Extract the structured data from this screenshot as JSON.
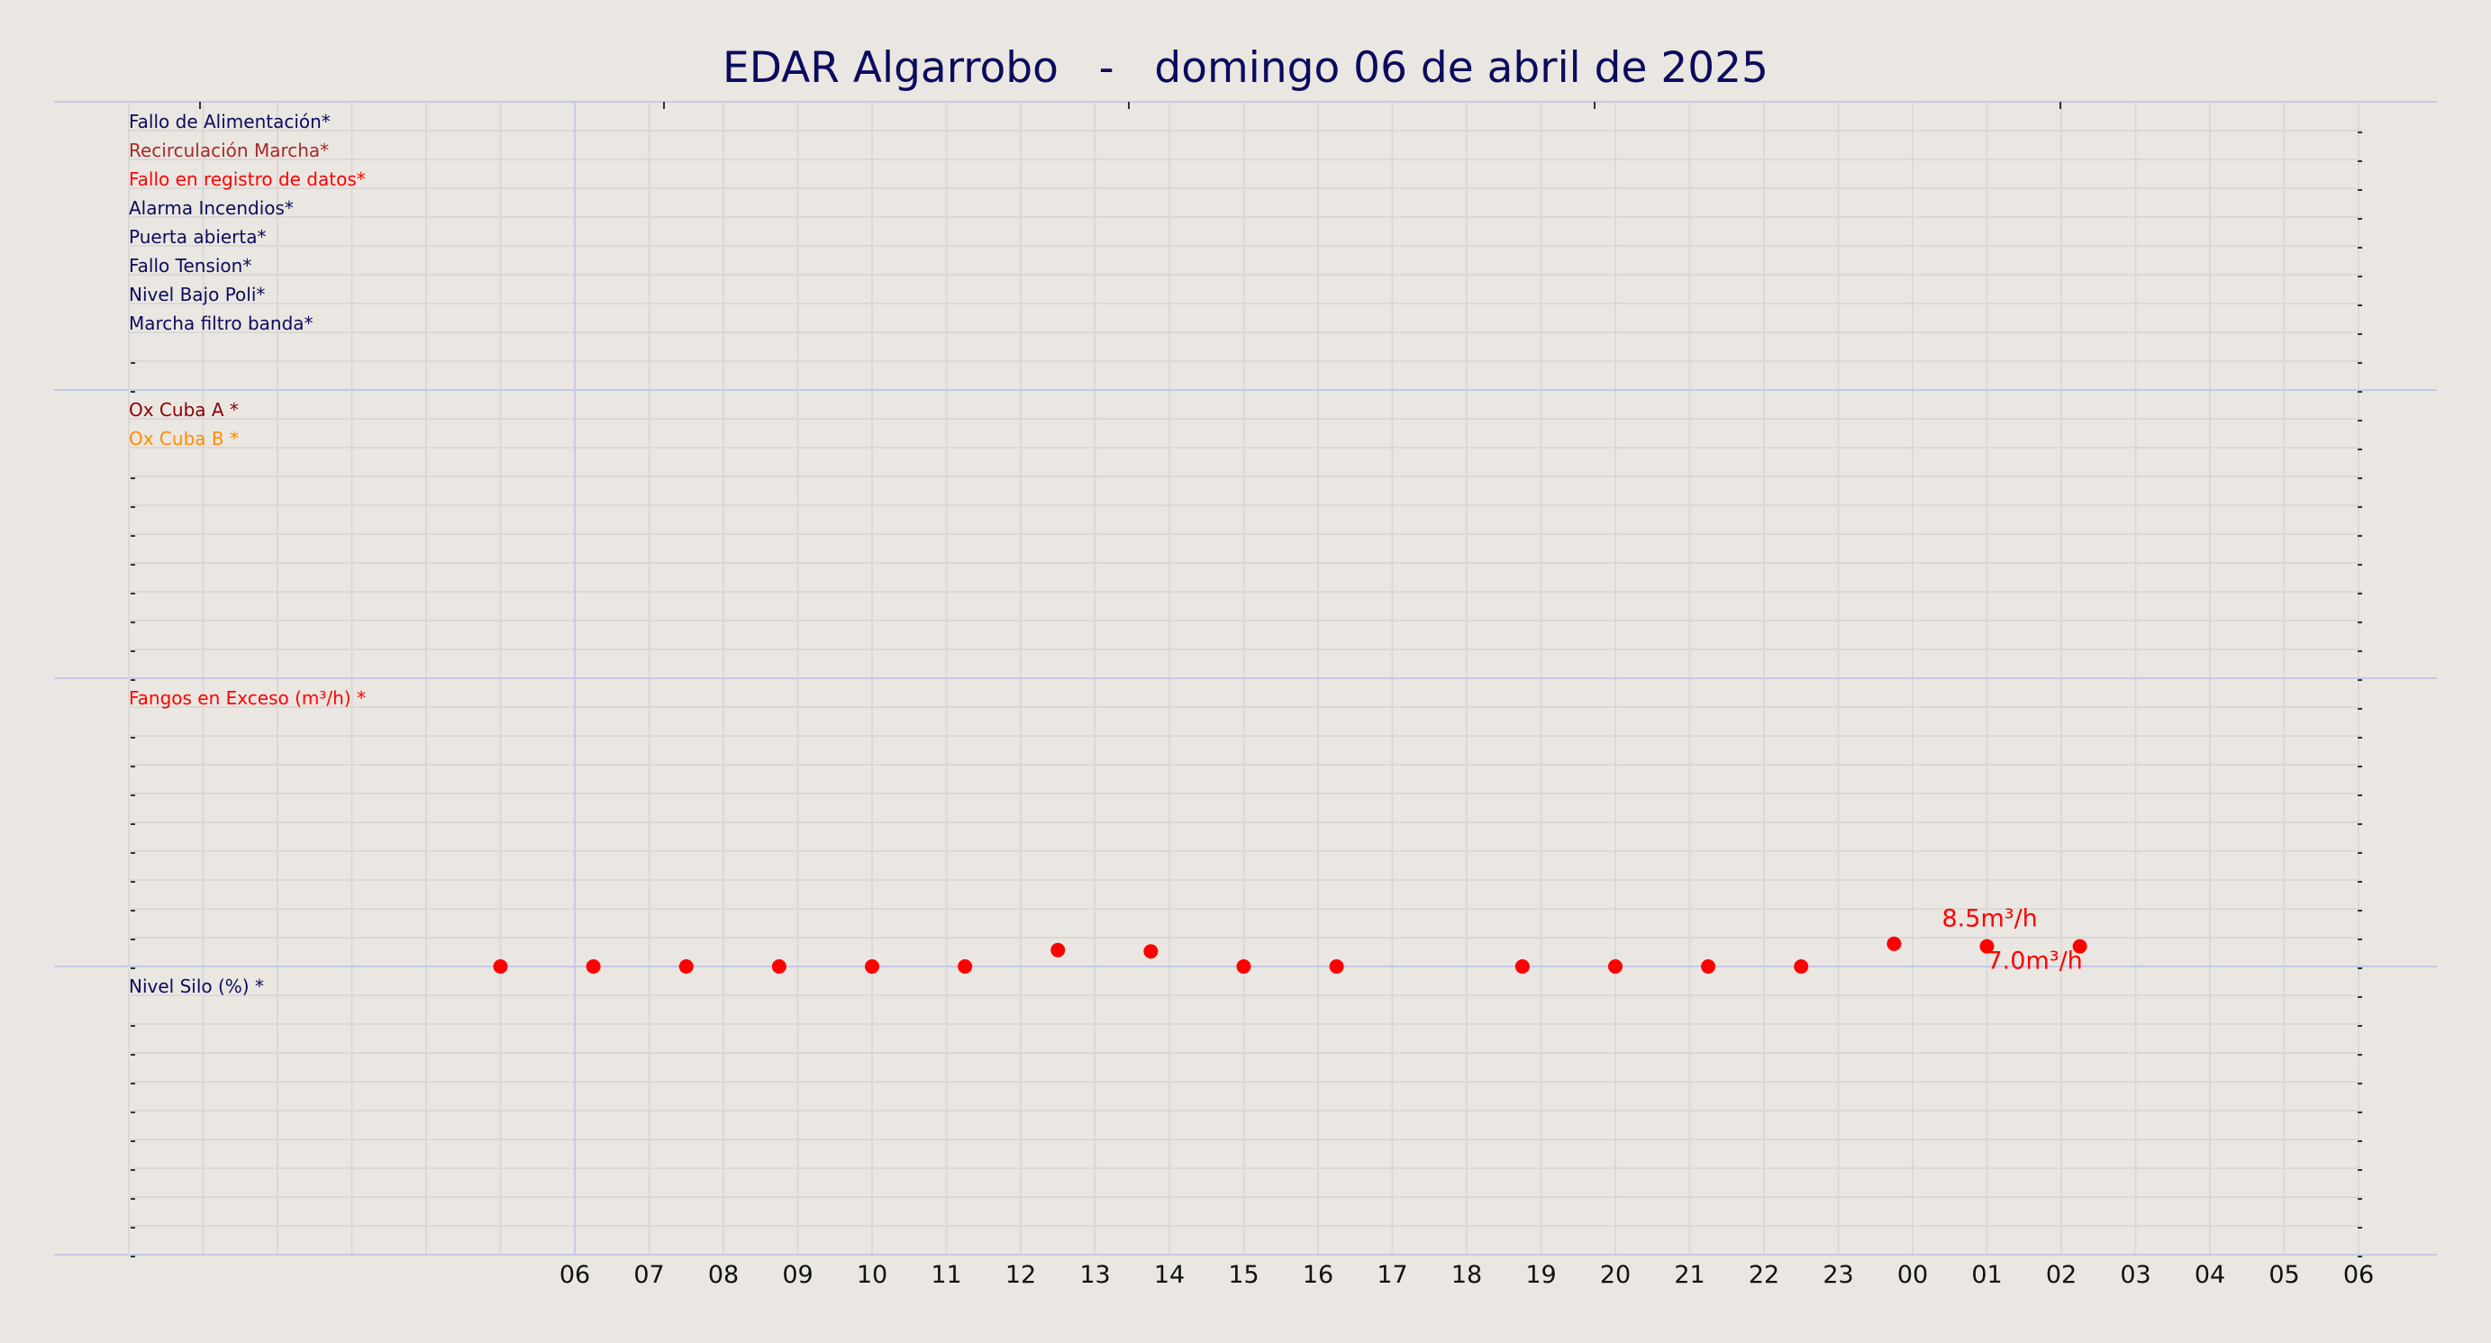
{
  "title": "EDAR Algarrobo   -   domingo 06 de abril de 2025",
  "colors": {
    "background": "#eae6e1",
    "grid": "#dcd8d6",
    "panel_separator": "#c7c7e8",
    "title": "#0b0b5e",
    "marker": "#ff0000"
  },
  "chart_data": {
    "type": "scatter",
    "x_tick_labels": [
      "06",
      "07",
      "08",
      "09",
      "10",
      "11",
      "12",
      "13",
      "14",
      "15",
      "16",
      "17",
      "18",
      "19",
      "20",
      "21",
      "22",
      "23",
      "00",
      "01",
      "02",
      "03",
      "04",
      "05",
      "06"
    ],
    "x_top_tick_labels": [
      "",
      "",
      "",
      "",
      ""
    ],
    "grid": true,
    "panels": [
      {
        "name": "alarms",
        "labels": [
          {
            "text": "Fallo de Alimentación*",
            "color": "#0b0b5e"
          },
          {
            "text": "Recirculación Marcha*",
            "color": "#a52a2a"
          },
          {
            "text": "Fallo en registro de datos*",
            "color": "#ff0000"
          },
          {
            "text": "Alarma Incendios*",
            "color": "#0b0b5e"
          },
          {
            "text": "Puerta abierta*",
            "color": "#0b0b5e"
          },
          {
            "text": "Fallo Tension*",
            "color": "#0b0b5e"
          },
          {
            "text": "Nivel Bajo Poli*",
            "color": "#0b0b5e"
          },
          {
            "text": "Marcha filtro banda*",
            "color": "#0b0b5e"
          }
        ]
      },
      {
        "name": "oxygen",
        "labels": [
          {
            "text": "Ox Cuba A *",
            "color": "#8b0000"
          },
          {
            "text": "Ox Cuba B *",
            "color": "#ff8c00"
          }
        ]
      },
      {
        "name": "sludge",
        "labels": [
          {
            "text": "Fangos en Exceso (m³/h) *",
            "color": "#ff0000"
          }
        ],
        "series": [
          {
            "color": "#ff0000",
            "points": [
              {
                "x": "05:00",
                "y": 0
              },
              {
                "x": "06:15",
                "y": 0
              },
              {
                "x": "07:30",
                "y": 0
              },
              {
                "x": "08:45",
                "y": 0
              },
              {
                "x": "10:00",
                "y": 0
              },
              {
                "x": "11:15",
                "y": 0
              },
              {
                "x": "12:30",
                "y": 1.3
              },
              {
                "x": "13:45",
                "y": 1.2
              },
              {
                "x": "15:00",
                "y": 0
              },
              {
                "x": "16:15",
                "y": 0
              },
              {
                "x": "18:45",
                "y": 0
              },
              {
                "x": "20:00",
                "y": 0
              },
              {
                "x": "21:15",
                "y": 0
              },
              {
                "x": "22:30",
                "y": 0
              },
              {
                "x": "23:45",
                "y": 1.8
              },
              {
                "x": "01:00",
                "y": 1.6
              },
              {
                "x": "02:15",
                "y": 1.6
              }
            ]
          }
        ],
        "annotations": [
          {
            "text": "8.5m³/h",
            "x": "01:00",
            "y": 1.6,
            "color": "#ff0000",
            "placement": "above"
          },
          {
            "text": "7.0m³/h",
            "x": "01:00",
            "y": 1.6,
            "color": "#ff0000",
            "placement": "below"
          }
        ]
      },
      {
        "name": "silo",
        "labels": [
          {
            "text": "Nivel Silo (%) *",
            "color": "#0b0b5e"
          }
        ]
      }
    ]
  }
}
